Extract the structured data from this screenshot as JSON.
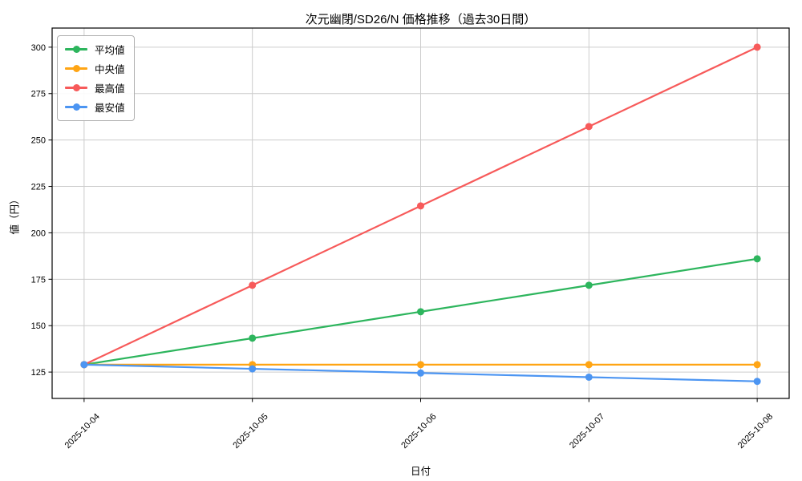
{
  "chart_data": {
    "type": "line",
    "title": "次元幽閉/SD26/N 価格推移（過去30日間）",
    "xlabel": "日付",
    "ylabel": "値（円）",
    "categories": [
      "2025-10-04",
      "2025-10-05",
      "2025-10-06",
      "2025-10-07",
      "2025-10-08"
    ],
    "series": [
      {
        "name": "平均値",
        "color": "#2db55d",
        "values": [
          129,
          143.25,
          157.5,
          171.75,
          186
        ]
      },
      {
        "name": "中央値",
        "color": "#ffa514",
        "values": [
          129,
          129,
          129,
          129,
          129
        ]
      },
      {
        "name": "最高値",
        "color": "#f75a5a",
        "values": [
          129,
          171.75,
          214.5,
          257.25,
          300
        ]
      },
      {
        "name": "最安値",
        "color": "#4c95f2",
        "values": [
          129,
          126.75,
          124.5,
          122.25,
          120
        ]
      }
    ],
    "yticks": [
      125,
      150,
      175,
      200,
      225,
      250,
      275,
      300
    ],
    "ylim": [
      110.8,
      310.3
    ],
    "xtick_rotation_deg": 45,
    "grid": true,
    "grid_color": "#cccccc",
    "legend_position": "upper-left",
    "background_color": "#ffffff"
  }
}
